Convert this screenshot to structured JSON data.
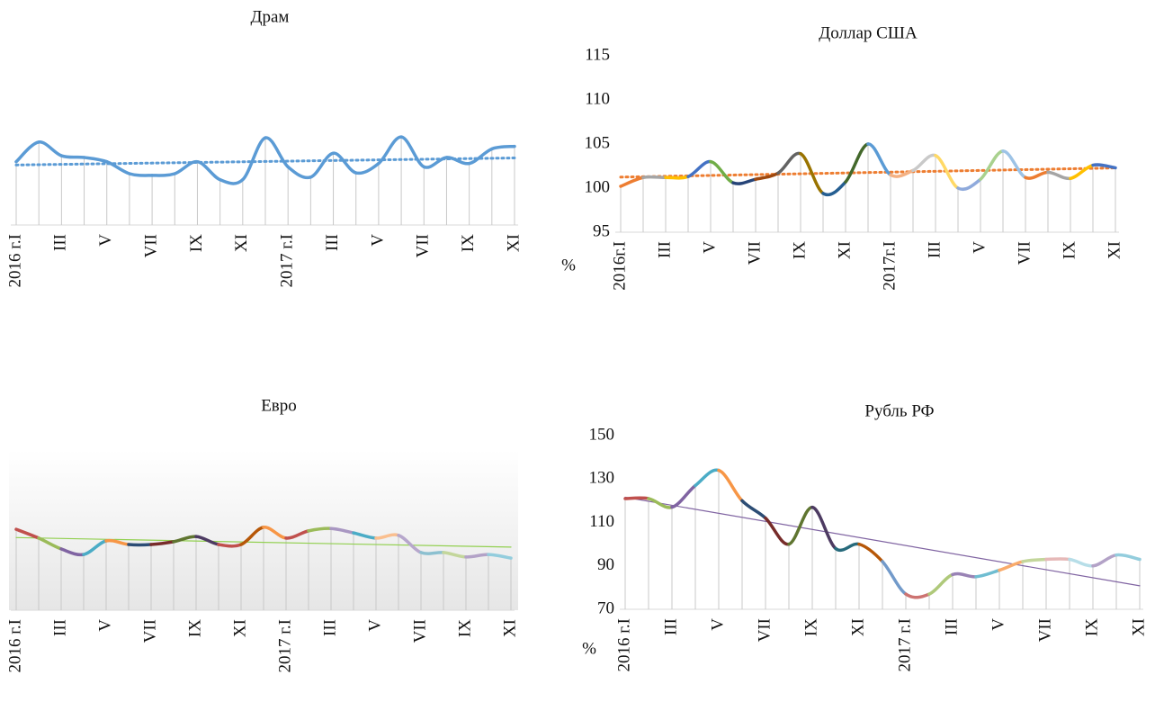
{
  "chart_data": [
    {
      "type": "line",
      "title": "Драм",
      "categories": [
        "2016 г.I",
        null,
        "III",
        null,
        "V",
        null,
        "VII",
        null,
        "IX",
        null,
        "XI",
        null,
        "2017 г.I",
        null,
        "III",
        null,
        "V",
        null,
        "VII",
        null,
        "IX",
        null,
        "XI"
      ],
      "values": [
        102.4,
        104.7,
        103.1,
        102.9,
        102.4,
        101.0,
        100.8,
        101.0,
        102.4,
        100.3,
        100.3,
        105.2,
        101.8,
        100.6,
        103.4,
        101.1,
        102.2,
        105.3,
        101.8,
        102.9,
        102.2,
        103.9,
        104.2
      ],
      "ylim": [
        95,
        115
      ],
      "color": "#5b9bd5",
      "trendline": "dotted",
      "trend_color": "#5b9bd5",
      "drop_lines": true
    },
    {
      "type": "line",
      "title": "Доллар США",
      "unit_label": "%",
      "categories": [
        "2016г.I",
        null,
        "III",
        null,
        "V",
        null,
        "VII",
        null,
        "IX",
        null,
        "XI",
        null,
        "2017г.I",
        null,
        "III",
        null,
        "V",
        null,
        "VII",
        null,
        "IX",
        null,
        "XI"
      ],
      "values": [
        100.2,
        101.2,
        101.2,
        101.3,
        103.0,
        100.6,
        101.0,
        101.7,
        103.9,
        99.4,
        100.7,
        105.0,
        101.5,
        102.0,
        103.7,
        100.0,
        101.0,
        104.2,
        101.2,
        101.8,
        101.1,
        102.6,
        102.3
      ],
      "ylim": [
        95,
        115
      ],
      "yticks": [
        95,
        100,
        105,
        110,
        115
      ],
      "segment_colors": [
        "#ed7d31",
        "#a5a5a5",
        "#ffc000",
        "#4472c4",
        "#70ad47",
        "#264478",
        "#9e480e",
        "#636363",
        "#997300",
        "#255e91",
        "#43682b",
        "#5b9bd5",
        "#f4b183",
        "#c9c9c9",
        "#ffd966",
        "#8faadc",
        "#a9d18e",
        "#9dc3e6"
      ],
      "trendline": "dotted",
      "trend_color": "#ed7d31",
      "drop_lines": true
    },
    {
      "type": "line",
      "title": "Евро",
      "categories": [
        "2016 г.I",
        null,
        "III",
        null,
        "V",
        null,
        "VII",
        null,
        "IX",
        null,
        "XI",
        null,
        "2017 г.I",
        null,
        "III",
        null,
        "V",
        null,
        "VII",
        null,
        "IX",
        null,
        "XI"
      ],
      "values": [
        100.2,
        98.0,
        95.3,
        93.9,
        97.3,
        96.4,
        96.4,
        97.1,
        98.4,
        96.4,
        96.4,
        100.7,
        98.0,
        99.8,
        100.4,
        99.3,
        98.0,
        98.7,
        94.4,
        94.4,
        93.3,
        93.9,
        93.0
      ],
      "ylim": [
        80,
        120
      ],
      "segment_colors": [
        "#c0504d",
        "#9bbb59",
        "#8064a2",
        "#4bacc6",
        "#f79646",
        "#2c4d75",
        "#772c2a",
        "#5f7530",
        "#4d3b62",
        "#c0504d",
        "#b65708",
        "#f79646",
        "#c0504d",
        "#9bbb59",
        "#a997c2",
        "#4bacc6",
        "#fabf8f",
        "#b7a7cc",
        "#8cc0d0",
        "#c3d69b",
        "#b3a2c7",
        "#93cddd"
      ],
      "trendline": "solid",
      "trend_color": "#92d050",
      "drop_lines": true,
      "background_gradient": true
    },
    {
      "type": "line",
      "title": "Рубль РФ",
      "unit_label": "%",
      "categories": [
        "2016 г.I",
        null,
        "III",
        null,
        "V",
        null,
        "VII",
        null,
        "IX",
        null,
        "XI",
        null,
        "2017 г.I",
        null,
        "III",
        null,
        "V",
        null,
        "VII",
        null,
        "IX",
        null,
        "XI"
      ],
      "values": [
        121,
        121,
        117,
        127,
        134,
        120,
        112,
        100,
        117,
        98,
        100,
        92,
        77,
        77,
        86,
        85,
        88,
        92,
        93,
        93,
        90,
        95,
        93
      ],
      "ylim": [
        70,
        150
      ],
      "yticks": [
        70,
        90,
        110,
        130,
        150
      ],
      "segment_colors": [
        "#c0504d",
        "#9bbb59",
        "#8064a2",
        "#4bacc6",
        "#f79646",
        "#2c4d75",
        "#772c2a",
        "#5f7530",
        "#4d3b62",
        "#276a7c",
        "#b65708",
        "#729aca",
        "#cd7371",
        "#afc97a",
        "#9983b5",
        "#6fbdd1",
        "#f9ab6b",
        "#c3d69b",
        "#e6b9b8",
        "#b7dee8",
        "#b3a2c7",
        "#93cddd"
      ],
      "trendline": "solid",
      "trend_color": "#8064a2",
      "drop_lines": true
    }
  ]
}
